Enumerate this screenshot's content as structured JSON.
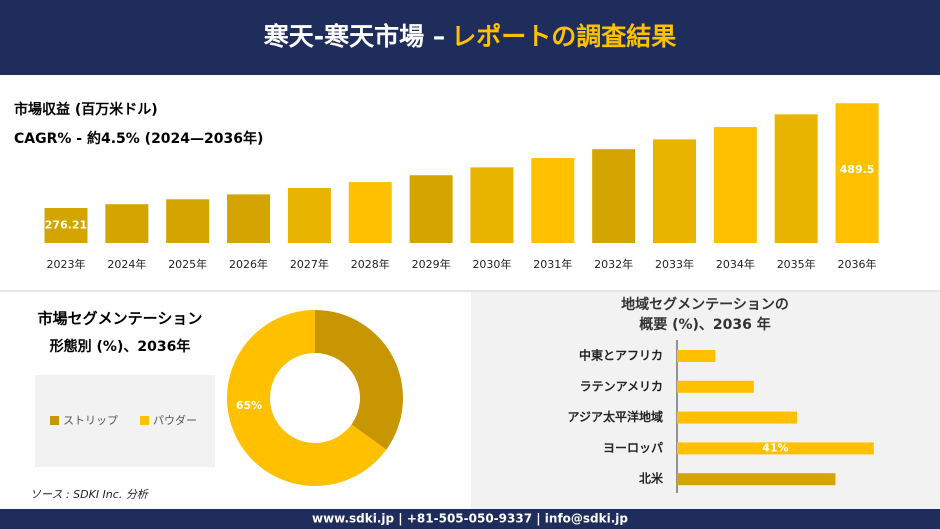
{
  "header": {
    "title_main": "寒天-寒天市場 –",
    "title_accent": "レポートの調査結果"
  },
  "footer": {
    "contact": "www.sdki.jp | +81-505-050-9337 | info@sdki.jp"
  },
  "source": "ソース : SDKI Inc. 分析",
  "chart_data": [
    {
      "type": "bar",
      "title": "市場収益 (百万米ドル)",
      "subtitle": "CAGR% - 約4.5% (2024—2036年)",
      "categories": [
        "2023年",
        "2024年",
        "2025年",
        "2026年",
        "2027年",
        "2028年",
        "2029年",
        "2030年",
        "2031年",
        "2032年",
        "2033年",
        "2034年",
        "2035年",
        "2036年"
      ],
      "values": [
        276.21,
        284,
        294,
        304,
        317,
        329,
        343,
        359,
        378,
        396,
        416,
        441,
        467,
        489.5
      ],
      "value_labels": [
        "276.21",
        null,
        null,
        null,
        null,
        null,
        null,
        null,
        null,
        null,
        null,
        null,
        null,
        "489.5"
      ],
      "colors": [
        "#d4a400",
        "#d4a400",
        "#d4a400",
        "#d4a400",
        "#e8b400",
        "#ffc000",
        "#d4a400",
        "#e8b400",
        "#ffc000",
        "#d4a400",
        "#e8b400",
        "#ffc000",
        "#e8b400",
        "#ffc000"
      ],
      "ylim": [
        205,
        490
      ]
    },
    {
      "type": "donut",
      "title": "市場セグメンテーション",
      "subtitle": "形態別 (%)、2036年",
      "categories": [
        "ストリップ",
        "パウダー"
      ],
      "values": [
        35,
        65
      ],
      "value_labels": [
        null,
        "65%"
      ],
      "colors": [
        "#c89600",
        "#ffc000"
      ]
    },
    {
      "type": "hbar",
      "title": "地域セグメンテーションの",
      "subtitle": "概要 (%)、2036 年",
      "categories": [
        "中東とアフリカ",
        "ラテンアメリカ",
        "アジア太平洋地域",
        "ヨーロッパ",
        "北米"
      ],
      "values": [
        8,
        16,
        25,
        41,
        33
      ],
      "value_labels": [
        null,
        null,
        null,
        "41%",
        null
      ],
      "colors": [
        "#ffc000",
        "#ffc000",
        "#ffc000",
        "#ffc000",
        "#d4a400"
      ],
      "xlim": [
        0,
        45
      ]
    }
  ]
}
